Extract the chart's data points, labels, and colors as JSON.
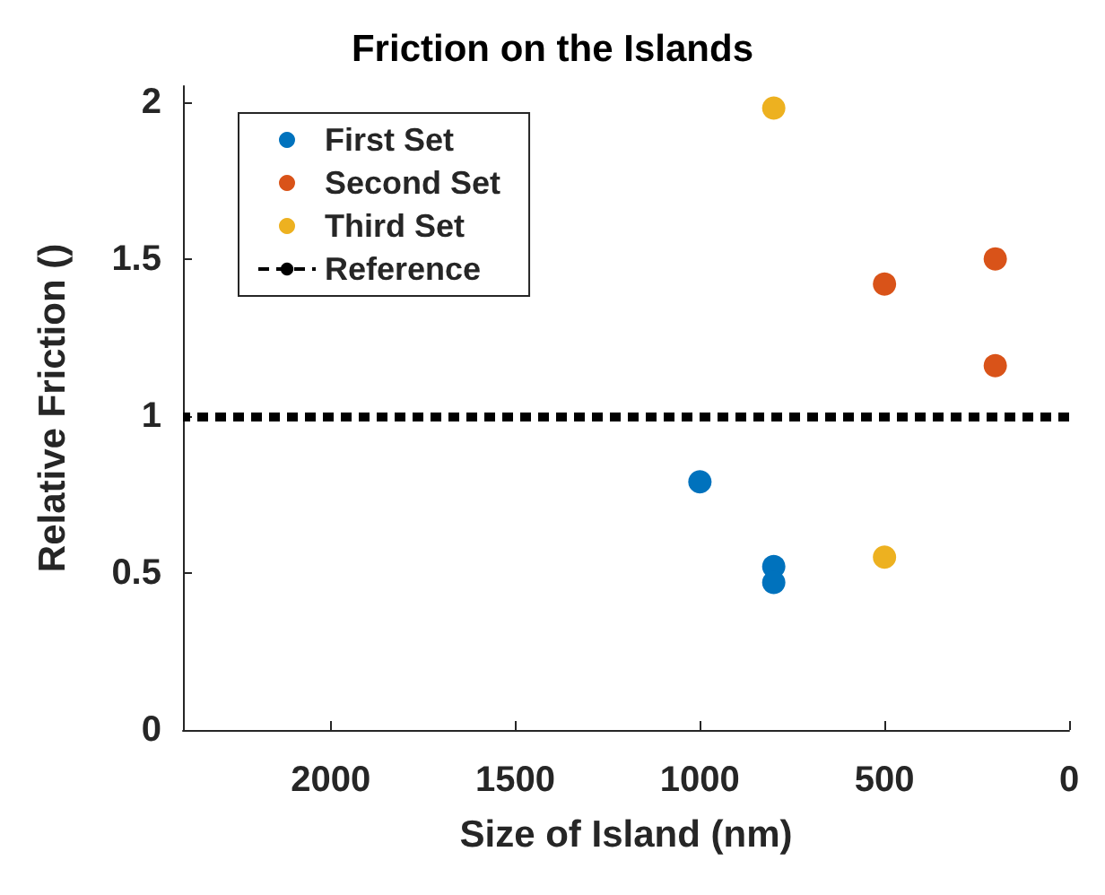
{
  "chart_data": {
    "type": "scatter",
    "title": "Friction on the Islands",
    "xlabel": "Size of Island (nm)",
    "ylabel": "Relative Friction ()",
    "series": [
      {
        "name": "First Set",
        "color": "#0072bd",
        "x": [
          1000,
          800,
          800
        ],
        "values": [
          0.79,
          0.52,
          0.47
        ]
      },
      {
        "name": "Second Set",
        "color": "#d95319",
        "x": [
          500,
          200,
          200
        ],
        "values": [
          1.42,
          1.5,
          1.16
        ]
      },
      {
        "name": "Third Set",
        "color": "#edb120",
        "x": [
          800,
          500
        ],
        "values": [
          1.98,
          0.55
        ]
      }
    ],
    "ref_lines": [
      {
        "axis": "y",
        "value": 1,
        "label": "Reference",
        "color": "#000000",
        "line_style": "dotted"
      }
    ],
    "xlim": [
      2400,
      0
    ],
    "xticks": [
      2000,
      1500,
      1000,
      500,
      0
    ],
    "ylim": [
      0,
      2.05
    ],
    "yticks": [
      0,
      0.5,
      1,
      1.5,
      2
    ],
    "marker": "circle",
    "grid": false,
    "legend": "top left"
  }
}
